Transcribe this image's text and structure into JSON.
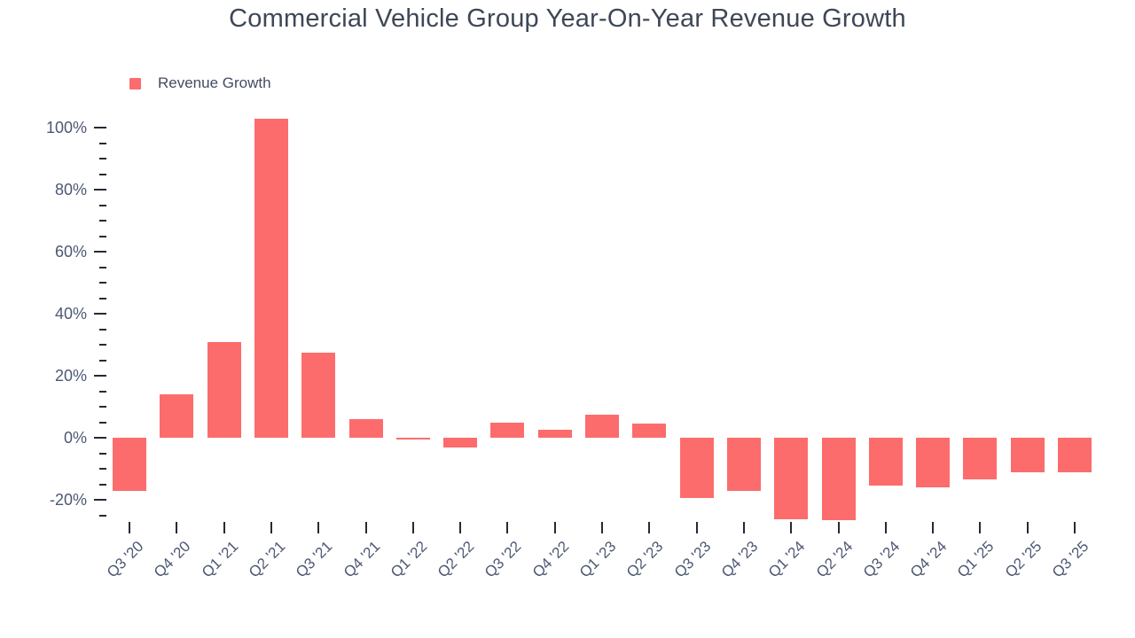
{
  "title": "Commercial Vehicle Group Year-On-Year Revenue Growth",
  "legend": {
    "label": "Revenue Growth"
  },
  "colors": {
    "bar": "#FC6C6C",
    "tick": "#242A35",
    "axis_label": "#4D5874",
    "title_text": "#3E4757",
    "legend_text": "#414D63",
    "background": "#FFFFFF"
  },
  "chart_data": {
    "type": "bar",
    "title": "Commercial Vehicle Group Year-On-Year Revenue Growth",
    "xlabel": "",
    "ylabel": "",
    "legend": [
      "Revenue Growth"
    ],
    "legend_position": "top-left",
    "grid": false,
    "categories": [
      "Q3 '20",
      "Q4 '20",
      "Q1 '21",
      "Q2 '21",
      "Q3 '21",
      "Q4 '21",
      "Q1 '22",
      "Q2 '22",
      "Q3 '22",
      "Q4 '22",
      "Q1 '23",
      "Q2 '23",
      "Q3 '23",
      "Q4 '23",
      "Q1 '24",
      "Q2 '24",
      "Q3 '24",
      "Q4 '24",
      "Q1 '25",
      "Q2 '25",
      "Q3 '25"
    ],
    "values": [
      -17,
      14,
      31,
      103,
      27.5,
      6,
      -0.5,
      -3,
      5,
      2.5,
      7.5,
      4.5,
      -19.3,
      -17.1,
      -26.3,
      -26.5,
      -15.5,
      -16,
      -13.3,
      -11.2,
      -11.2
    ],
    "unit": "%",
    "yticks_major": [
      -20,
      0,
      20,
      40,
      60,
      80,
      100
    ],
    "minor_tick_step": 5,
    "ylim": [
      -27,
      104
    ]
  }
}
